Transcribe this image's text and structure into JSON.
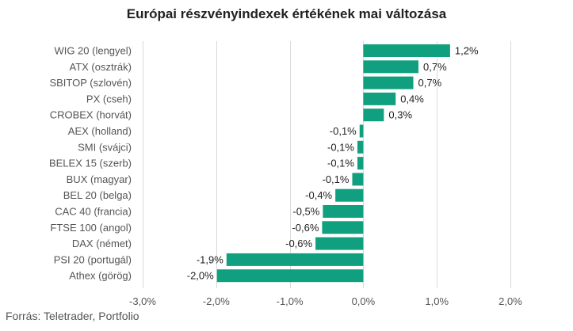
{
  "chart_data": {
    "type": "bar",
    "orientation": "horizontal",
    "title": "Európai részvényindexek értékének mai változása",
    "source": "Forrás: Teletrader, Portfolio",
    "color": "#11a07f",
    "grid": true,
    "xlim": [
      -3.0,
      2.0
    ],
    "xticks": [
      -3.0,
      -2.0,
      -1.0,
      0.0,
      1.0,
      2.0
    ],
    "xtick_labels": [
      "-3,0%",
      "-2,0%",
      "-1,0%",
      "0,0%",
      "1,0%",
      "2,0%"
    ],
    "categories": [
      "WIG 20 (lengyel)",
      "ATX (osztrák)",
      "SBITOP (szlovén)",
      "PX (cseh)",
      "CROBEX (horvát)",
      "AEX (holland)",
      "SMI (svájci)",
      "BELEX 15 (szerb)",
      "BUX (magyar)",
      "BEL 20 (belga)",
      "CAC 40 (francia)",
      "FTSE 100 (angol)",
      "DAX (német)",
      "PSI 20 (portugál)",
      "Athex (görög)"
    ],
    "values": [
      1.18,
      0.75,
      0.68,
      0.44,
      0.28,
      -0.05,
      -0.08,
      -0.08,
      -0.15,
      -0.38,
      -0.55,
      -0.56,
      -0.65,
      -1.86,
      -1.99
    ],
    "value_labels": [
      "1,2%",
      "0,7%",
      "0,7%",
      "0,4%",
      "0,3%",
      "-0,1%",
      "-0,1%",
      "-0,1%",
      "-0,1%",
      "-0,4%",
      "-0,5%",
      "-0,6%",
      "-0,6%",
      "-1,9%",
      "-2,0%"
    ]
  }
}
